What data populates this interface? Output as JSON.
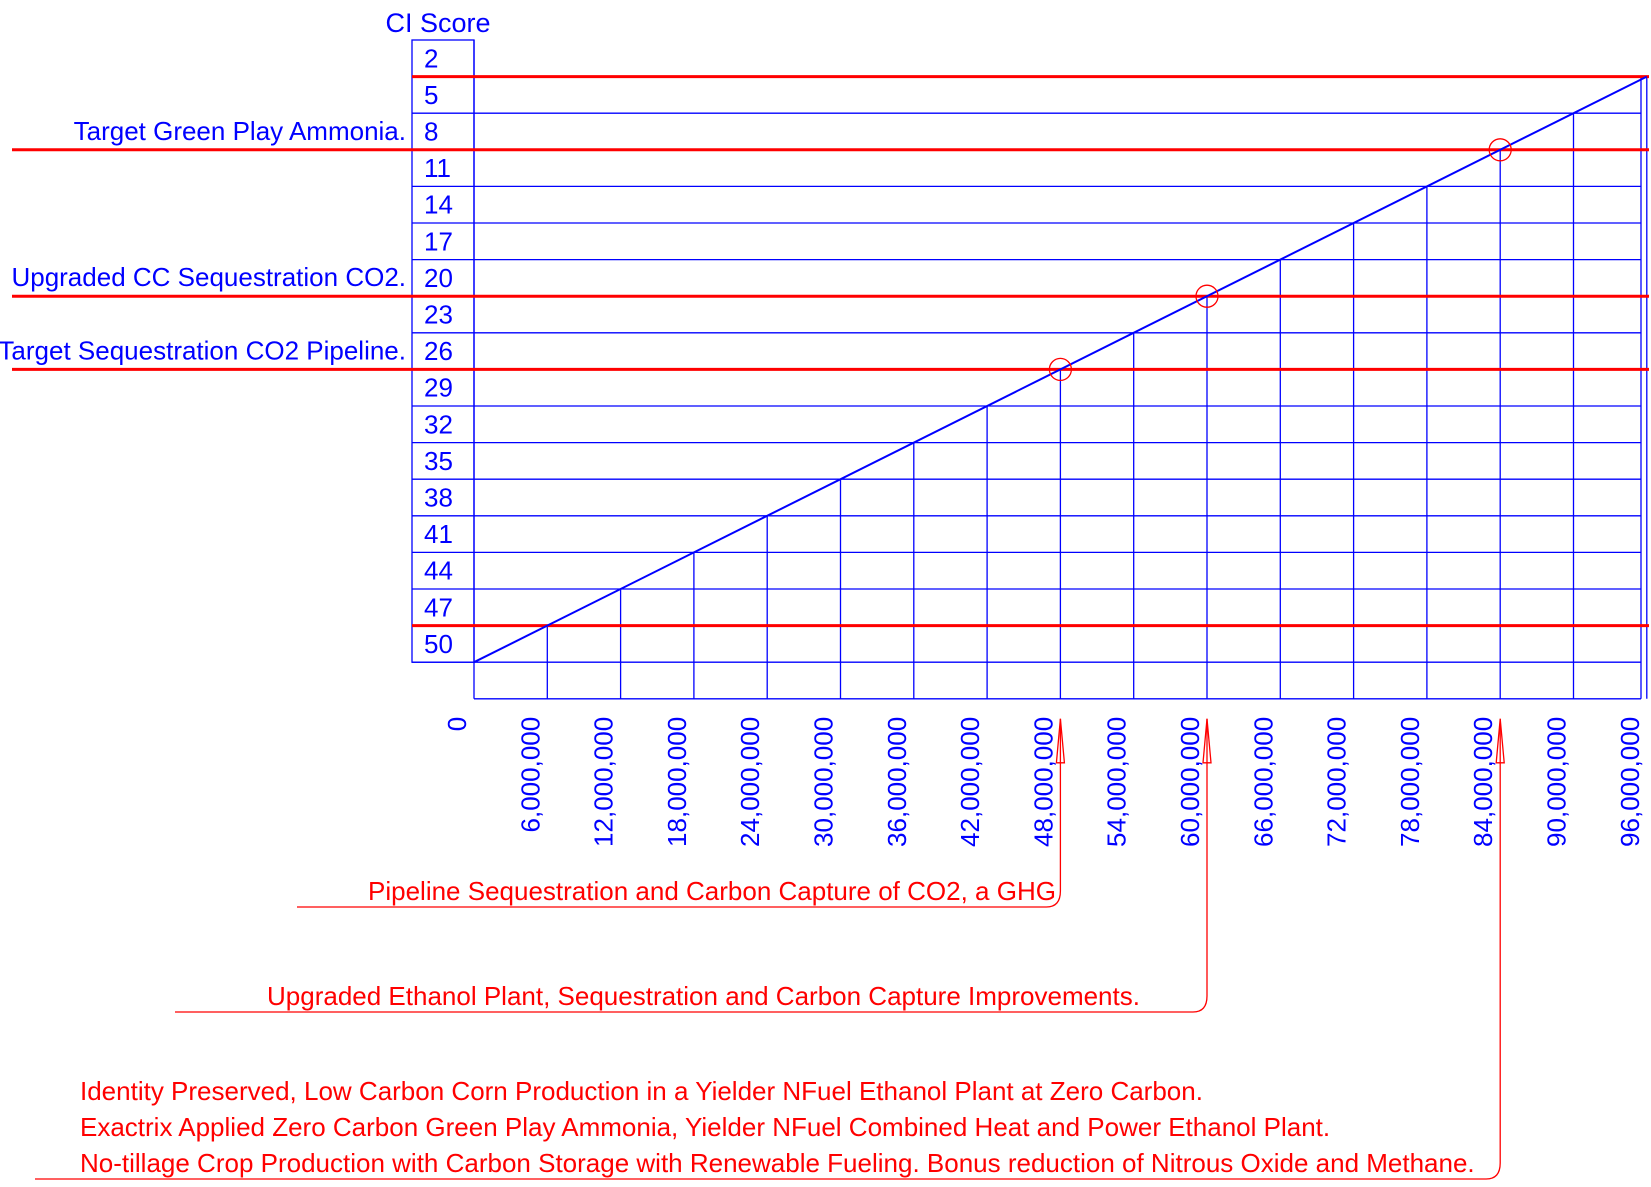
{
  "chart_data": {
    "type": "line",
    "title": "",
    "ylabel": "CI Score",
    "xlabel": "",
    "ylim": [
      2,
      50
    ],
    "xlim": [
      0,
      96000000
    ],
    "y_ticks": [
      2,
      5,
      8,
      11,
      14,
      17,
      20,
      23,
      26,
      29,
      32,
      35,
      38,
      41,
      44,
      47,
      50
    ],
    "x_ticks": [
      0,
      6000000,
      12000000,
      18000000,
      24000000,
      30000000,
      36000000,
      42000000,
      48000000,
      54000000,
      60000000,
      66000000,
      72000000,
      78000000,
      84000000,
      90000000,
      96000000
    ],
    "x_tick_labels": [
      "0",
      "6,000,000",
      "12,000,000",
      "18,000,000",
      "24,000,000",
      "30,000,000",
      "36,000,000",
      "42,000,000",
      "48,000,000",
      "54,000,000",
      "60,000,000",
      "66,000,000",
      "72,000,000",
      "78,000,000",
      "84,000,000",
      "90,000,000",
      "96,000,000"
    ],
    "grid": true,
    "series": [
      {
        "x": [
          0,
          96000000
        ],
        "y": [
          50,
          2
        ],
        "color": "#0000ff"
      }
    ],
    "reference_lines": [
      {
        "y": 2,
        "label": "",
        "color": "#ff0000"
      },
      {
        "y": 8,
        "label": "Target Green Play Ammonia.",
        "color": "#ff0000"
      },
      {
        "y": 20,
        "label": "Upgraded CC Sequestration CO2.",
        "color": "#ff0000"
      },
      {
        "y": 26,
        "label": "Target Sequestration CO2 Pipeline.",
        "color": "#ff0000"
      },
      {
        "y": 47,
        "label": "",
        "color": "#ff0000"
      }
    ],
    "highlight_points": [
      {
        "x": 48000000,
        "y": 26
      },
      {
        "x": 60000000,
        "y": 20
      },
      {
        "x": 84000000,
        "y": 8
      }
    ],
    "annotations": [
      {
        "x": 48000000,
        "lines": [
          "Pipeline Sequestration and Carbon Capture of CO2, a GHG"
        ]
      },
      {
        "x": 60000000,
        "lines": [
          "Upgraded Ethanol Plant, Sequestration and Carbon Capture Improvements."
        ]
      },
      {
        "x": 84000000,
        "lines": [
          "Identity Preserved, Low Carbon Corn Production in a Yielder NFuel Ethanol Plant at Zero Carbon.",
          "Exactrix Applied Zero Carbon Green Play Ammonia, Yielder NFuel Combined Heat and Power Ethanol Plant.",
          "No-tillage Crop Production with Carbon Storage with Renewable Fueling. Bonus reduction of Nitrous Oxide and Methane."
        ]
      }
    ],
    "colors": {
      "grid": "#0000ff",
      "line": "#0000ff",
      "reference": "#ff0000",
      "annotation": "#ff0000"
    }
  }
}
